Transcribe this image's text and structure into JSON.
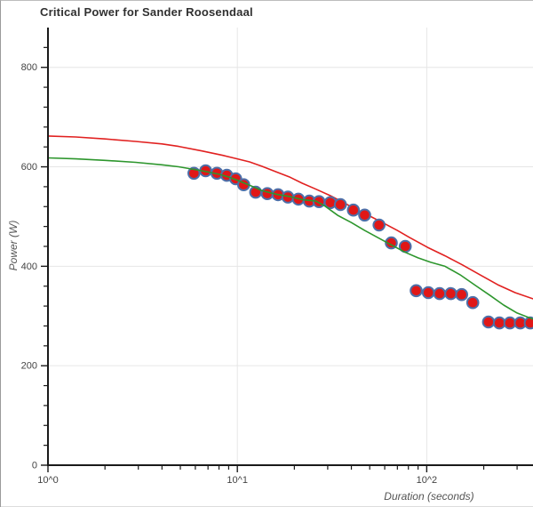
{
  "window": {
    "title": "Critical Power for Sander Roosendaal"
  },
  "chart_data": {
    "type": "scatter",
    "title": "Critical Power for Sander Roosendaal",
    "xlabel": "Duration (seconds)",
    "ylabel": "Power (W)",
    "x_scale": "log",
    "xlim": [
      1,
      368
    ],
    "ylim": [
      0,
      880
    ],
    "grid": true,
    "legend": "none",
    "x_ticks": {
      "values": [
        1,
        10,
        100
      ],
      "labels": [
        "10^0",
        "10^1",
        "10^2"
      ]
    },
    "y_ticks": {
      "values": [
        0,
        200,
        400,
        600,
        800
      ],
      "labels": [
        "0",
        "200",
        "400",
        "600",
        "800"
      ],
      "minor_step": 40
    },
    "colors": {
      "grid": "#e6e6e6",
      "axis": "#1a1a1a",
      "tick_label": "#444444",
      "axis_label": "#555555",
      "title": "#303030",
      "red_curve": "#e12120",
      "green_curve": "#2d962d",
      "point_fill": "#e01717",
      "point_stroke": "#4d6fa8"
    },
    "series": [
      {
        "name": "model-curve-red",
        "type": "line",
        "color": "#e12120",
        "width": 1.6,
        "points": [
          [
            1,
            662
          ],
          [
            1.4,
            660
          ],
          [
            2,
            656
          ],
          [
            2.9,
            651
          ],
          [
            4,
            646
          ],
          [
            4.9,
            641
          ],
          [
            6.5,
            632
          ],
          [
            8.4,
            623
          ],
          [
            10,
            616
          ],
          [
            11.6,
            610
          ],
          [
            13.5,
            601
          ],
          [
            16,
            590
          ],
          [
            19,
            579
          ],
          [
            22,
            567
          ],
          [
            26,
            555
          ],
          [
            31,
            542
          ],
          [
            36,
            529
          ],
          [
            42,
            515
          ],
          [
            50,
            501
          ],
          [
            59,
            487
          ],
          [
            70,
            472
          ],
          [
            81,
            458
          ],
          [
            101,
            438
          ],
          [
            125,
            421
          ],
          [
            154,
            403
          ],
          [
            191,
            383
          ],
          [
            237,
            363
          ],
          [
            293,
            347
          ],
          [
            368,
            334
          ]
        ]
      },
      {
        "name": "observed-power",
        "type": "scatter",
        "fill": "#e01717",
        "stroke": "#4d6fa8",
        "radius": 6.3,
        "stroke_width": 2,
        "points": [
          [
            5.9,
            587
          ],
          [
            6.8,
            592
          ],
          [
            7.8,
            587
          ],
          [
            8.8,
            583
          ],
          [
            9.8,
            576
          ],
          [
            10.8,
            564
          ],
          [
            12.5,
            549
          ],
          [
            14.4,
            546
          ],
          [
            16.4,
            544
          ],
          [
            18.5,
            539
          ],
          [
            21,
            535
          ],
          [
            24,
            531
          ],
          [
            27,
            530
          ],
          [
            31,
            528
          ],
          [
            35,
            524
          ],
          [
            41,
            513
          ],
          [
            47,
            503
          ],
          [
            56,
            483
          ],
          [
            65,
            447
          ],
          [
            77,
            440
          ],
          [
            88,
            351
          ],
          [
            102,
            347
          ],
          [
            117,
            345
          ],
          [
            134,
            345
          ],
          [
            153,
            343
          ],
          [
            175,
            327
          ],
          [
            212,
            288
          ],
          [
            242,
            286
          ],
          [
            275,
            286
          ],
          [
            312,
            286
          ],
          [
            352,
            286
          ]
        ]
      },
      {
        "name": "model-curve-green",
        "type": "line",
        "color": "#2d962d",
        "width": 1.6,
        "points": [
          [
            1,
            618
          ],
          [
            1.4,
            616
          ],
          [
            2,
            613
          ],
          [
            2.9,
            609
          ],
          [
            4,
            604
          ],
          [
            4.9,
            600
          ],
          [
            6.5,
            592
          ],
          [
            8,
            585
          ],
          [
            8.9,
            580
          ],
          [
            10,
            573
          ],
          [
            11.6,
            563
          ],
          [
            13.5,
            552
          ],
          [
            16,
            545
          ],
          [
            19,
            540
          ],
          [
            22,
            534
          ],
          [
            26,
            531
          ],
          [
            29,
            521
          ],
          [
            34,
            502
          ],
          [
            40,
            488
          ],
          [
            47,
            472
          ],
          [
            55,
            458
          ],
          [
            65,
            443
          ],
          [
            77,
            428
          ],
          [
            90,
            417
          ],
          [
            105,
            408
          ],
          [
            125,
            400
          ],
          [
            150,
            383
          ],
          [
            180,
            362
          ],
          [
            215,
            342
          ],
          [
            255,
            322
          ],
          [
            300,
            306
          ],
          [
            368,
            293
          ]
        ]
      }
    ]
  }
}
